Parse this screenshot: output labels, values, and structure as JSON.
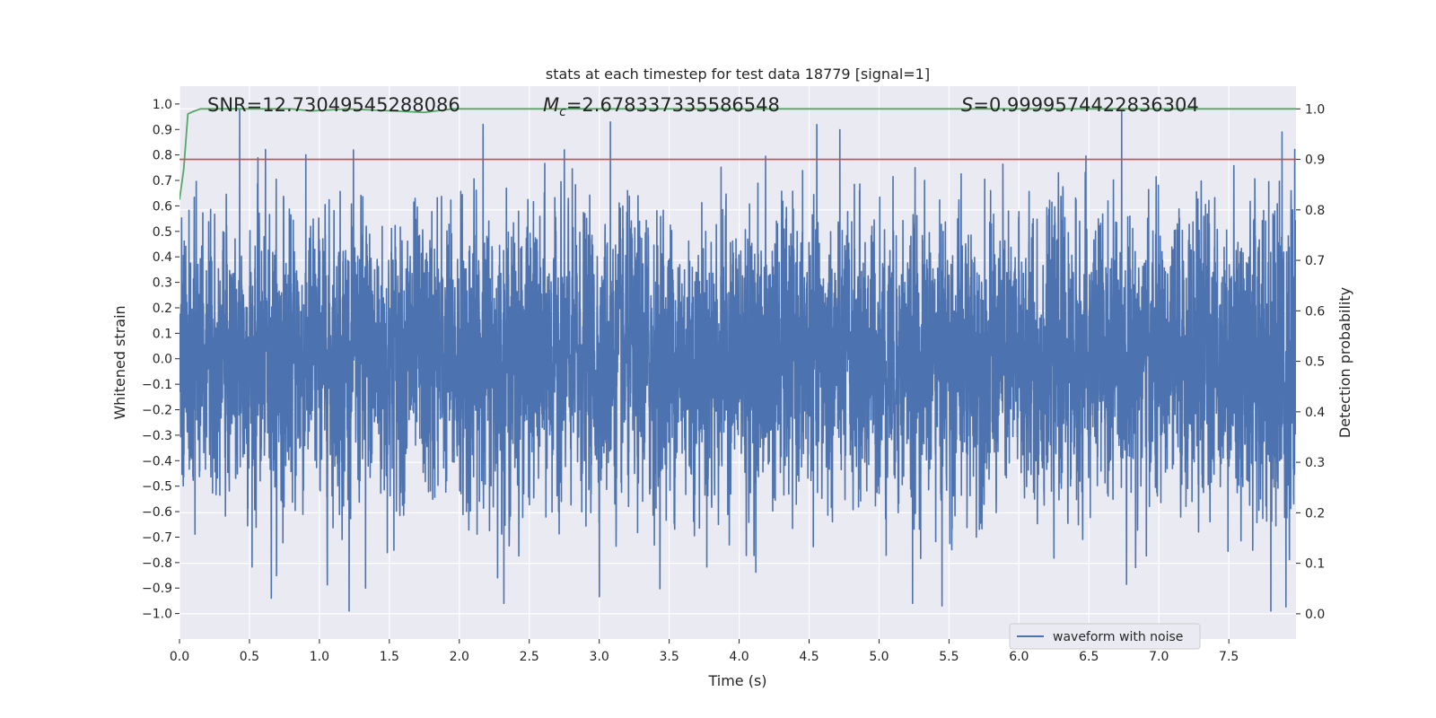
{
  "chart_data": {
    "type": "line",
    "title": "stats at each timestep for test data 18779 [signal=1]",
    "xlabel": "Time (s)",
    "ylabel": "Whitened strain",
    "y2label": "Detection probability",
    "xlim": [
      0.0,
      7.98
    ],
    "ylim": [
      -1.1,
      1.07
    ],
    "y2lim": [
      -0.05,
      1.045
    ],
    "xticks": [
      "0.0",
      "0.5",
      "1.0",
      "1.5",
      "2.0",
      "2.5",
      "3.0",
      "3.5",
      "4.0",
      "4.5",
      "5.0",
      "5.5",
      "6.0",
      "6.5",
      "7.0",
      "7.5"
    ],
    "yticks": [
      "1.0",
      "0.9",
      "0.8",
      "0.7",
      "0.6",
      "0.5",
      "0.4",
      "0.3",
      "0.2",
      "0.1",
      "0.0",
      "−0.1",
      "−0.2",
      "−0.3",
      "−0.4",
      "−0.5",
      "−0.6",
      "−0.7",
      "−0.8",
      "−0.9",
      "−1.0"
    ],
    "y2ticks": [
      "1.0",
      "0.9",
      "0.8",
      "0.7",
      "0.6",
      "0.5",
      "0.4",
      "0.3",
      "0.2",
      "0.1",
      "0.0"
    ],
    "annotations": {
      "snr": "SNR=12.73049545288086",
      "mc_symbol": "M",
      "mc_sub": "c",
      "mc_value": "=2.678337335586548",
      "s_symbol": "S",
      "s_value": "=0.9999574422836304"
    },
    "legend": {
      "entries": [
        "waveform with noise"
      ],
      "position": "lower-right"
    },
    "threshold": {
      "value": 0.9,
      "axis": "right"
    },
    "series": [
      {
        "name": "waveform with noise",
        "axis": "left",
        "style": "dense noise, typical amplitude ~0.3, occasional spikes to ~0.95, slight amplitude growth near the end",
        "x_range": [
          0.0,
          7.98
        ],
        "rms": 0.2,
        "peak_examples": [
          {
            "x": 0.43,
            "y": 0.98
          },
          {
            "x": 3.08,
            "y": 0.93
          },
          {
            "x": 2.17,
            "y": 0.92
          },
          {
            "x": 7.88,
            "y": 0.89
          },
          {
            "x": 1.33,
            "y": -0.9
          },
          {
            "x": 7.8,
            "y": -0.99
          },
          {
            "x": 5.45,
            "y": -0.97
          },
          {
            "x": 5.24,
            "y": -0.96
          }
        ]
      },
      {
        "name": "detection probability",
        "axis": "right",
        "x": [
          0.0,
          0.03,
          0.06,
          0.1,
          0.15,
          0.4,
          0.8,
          0.95,
          1.2,
          1.6,
          1.75,
          1.95,
          2.2,
          7.98
        ],
        "y": [
          0.82,
          0.88,
          0.99,
          0.995,
          1.0,
          1.0,
          1.0,
          0.996,
          1.0,
          0.995,
          0.993,
          1.0,
          1.0,
          1.0
        ]
      }
    ]
  },
  "colors": {
    "background": "#eaeaf2",
    "grid": "#ffffff",
    "waveform": "#4c72b0",
    "probability": "#55a868",
    "threshold": "#c44e52",
    "text": "#262626"
  }
}
